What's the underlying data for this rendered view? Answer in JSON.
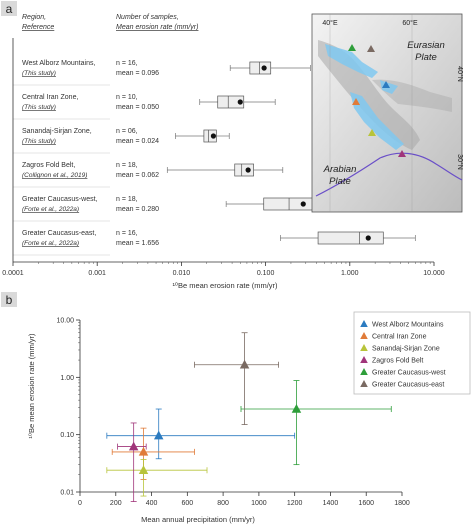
{
  "panel_labels": {
    "a": "a",
    "b": "b"
  },
  "panel_a": {
    "header_region": "Region,",
    "header_reference": "Reference",
    "header_samples": "Number of samples,",
    "header_mean": "Mean erosion rate (mm/yr)",
    "xlabel": "¹⁰Be mean erosion rate (mm/yr)",
    "x_ticks": [
      {
        "value": 0.0001,
        "label": "0.0001"
      },
      {
        "value": 0.001,
        "label": "0.001"
      },
      {
        "value": 0.01,
        "label": "0.010"
      },
      {
        "value": 0.1,
        "label": "0.100"
      },
      {
        "value": 1,
        "label": "1.000"
      },
      {
        "value": 10,
        "label": "10.000"
      }
    ],
    "map": {
      "label_eurasian_1": "Eurasian",
      "label_eurasian_2": "Plate",
      "label_arabian_1": "Arabian",
      "label_arabian_2": "Plate",
      "lon_labels": [
        "40°E",
        "60°E"
      ],
      "lat_labels": [
        "40°N",
        "30°N"
      ]
    }
  },
  "chart_data": [
    {
      "type": "box",
      "panel": "a",
      "x_scale": "log",
      "xlim": [
        0.0001,
        10
      ],
      "xlabel": "¹⁰Be mean erosion rate (mm/yr)",
      "rows": [
        {
          "region": "West Alborz Mountains,",
          "reference": "(This study)",
          "n_text": "n = 16,",
          "mean_text": "mean = 0.096",
          "mean": 0.096,
          "whisker_low": 0.038,
          "q1": 0.065,
          "median": 0.085,
          "q3": 0.115,
          "whisker_high": 0.34,
          "color": "#2b7bc0"
        },
        {
          "region": "Central Iran Zone,",
          "reference": "(This study)",
          "n_text": "n = 10,",
          "mean_text": "mean = 0.050",
          "mean": 0.05,
          "whisker_low": 0.0165,
          "q1": 0.027,
          "median": 0.036,
          "q3": 0.055,
          "whisker_high": 0.13,
          "color": "#e07b39"
        },
        {
          "region": "Sanandaj-Sirjan Zone,",
          "reference": "(This study)",
          "n_text": "n = 06,",
          "mean_text": "mean = 0.024",
          "mean": 0.024,
          "whisker_low": 0.0085,
          "q1": 0.0185,
          "median": 0.021,
          "q3": 0.026,
          "whisker_high": 0.037,
          "color": "#b8c43a"
        },
        {
          "region": "Zagros Fold Belt,",
          "reference": "(Collignon et al., 2019)",
          "n_text": "n = 18,",
          "mean_text": "mean = 0.062",
          "mean": 0.062,
          "whisker_low": 0.0068,
          "q1": 0.043,
          "median": 0.052,
          "q3": 0.072,
          "whisker_high": 0.16,
          "color": "#a0357a"
        },
        {
          "region": "Greater Caucasus-west,",
          "reference": "(Forte et al., 2022a)",
          "n_text": "n = 18,",
          "mean_text": "mean = 0.280",
          "mean": 0.28,
          "whisker_low": 0.034,
          "q1": 0.095,
          "median": 0.19,
          "q3": 0.4,
          "whisker_high": 0.95,
          "color": "#2e9e3a"
        },
        {
          "region": "Greater Caucasus-east,",
          "reference": "(Forte et al., 2022a)",
          "n_text": "n = 16,",
          "mean_text": "mean = 1.656",
          "mean": 1.656,
          "whisker_low": 0.15,
          "q1": 0.42,
          "median": 1.3,
          "q3": 2.5,
          "whisker_high": 6.0,
          "color": "#7a6a62"
        }
      ]
    },
    {
      "type": "scatter",
      "panel": "b",
      "xlabel": "Mean annual precipitation (mm/yr)",
      "ylabel": "¹⁰Be mean erosion rate (mm/yr)",
      "y_scale": "log",
      "xlim": [
        0,
        1800
      ],
      "ylim": [
        0.01,
        10
      ],
      "x_ticks": [
        0,
        200,
        400,
        600,
        800,
        1000,
        1200,
        1400,
        1600,
        1800
      ],
      "y_ticks": [
        {
          "value": 0.01,
          "label": "0.01"
        },
        {
          "value": 0.1,
          "label": "0.10"
        },
        {
          "value": 1,
          "label": "1.00"
        },
        {
          "value": 10,
          "label": "10.00"
        }
      ],
      "legend_position": "top-right",
      "series": [
        {
          "name": "West Alborz Mountains",
          "color": "#2b7bc0",
          "x": 440,
          "y": 0.096,
          "x_err": [
            150,
            1200
          ],
          "y_err": [
            0.038,
            0.28
          ]
        },
        {
          "name": "Central Iran Zone",
          "color": "#e07b39",
          "x": 355,
          "y": 0.05,
          "x_err": [
            180,
            640
          ],
          "y_err": [
            0.0165,
            0.13
          ]
        },
        {
          "name": "Sanandaj-Sirjan Zone",
          "color": "#b8c43a",
          "x": 355,
          "y": 0.024,
          "x_err": [
            150,
            710
          ],
          "y_err": [
            0.0085,
            0.037
          ]
        },
        {
          "name": "Zagros Fold Belt",
          "color": "#a0357a",
          "x": 300,
          "y": 0.062,
          "x_err": [
            210,
            370
          ],
          "y_err": [
            0.0068,
            0.16
          ]
        },
        {
          "name": "Greater Caucasus-west",
          "color": "#2e9e3a",
          "x": 1210,
          "y": 0.28,
          "x_err": [
            900,
            1740
          ],
          "y_err": [
            0.03,
            0.88
          ]
        },
        {
          "name": "Greater Caucasus-east",
          "color": "#7a6a62",
          "x": 920,
          "y": 1.656,
          "x_err": [
            640,
            1110
          ],
          "y_err": [
            0.15,
            6.0
          ]
        }
      ]
    }
  ]
}
